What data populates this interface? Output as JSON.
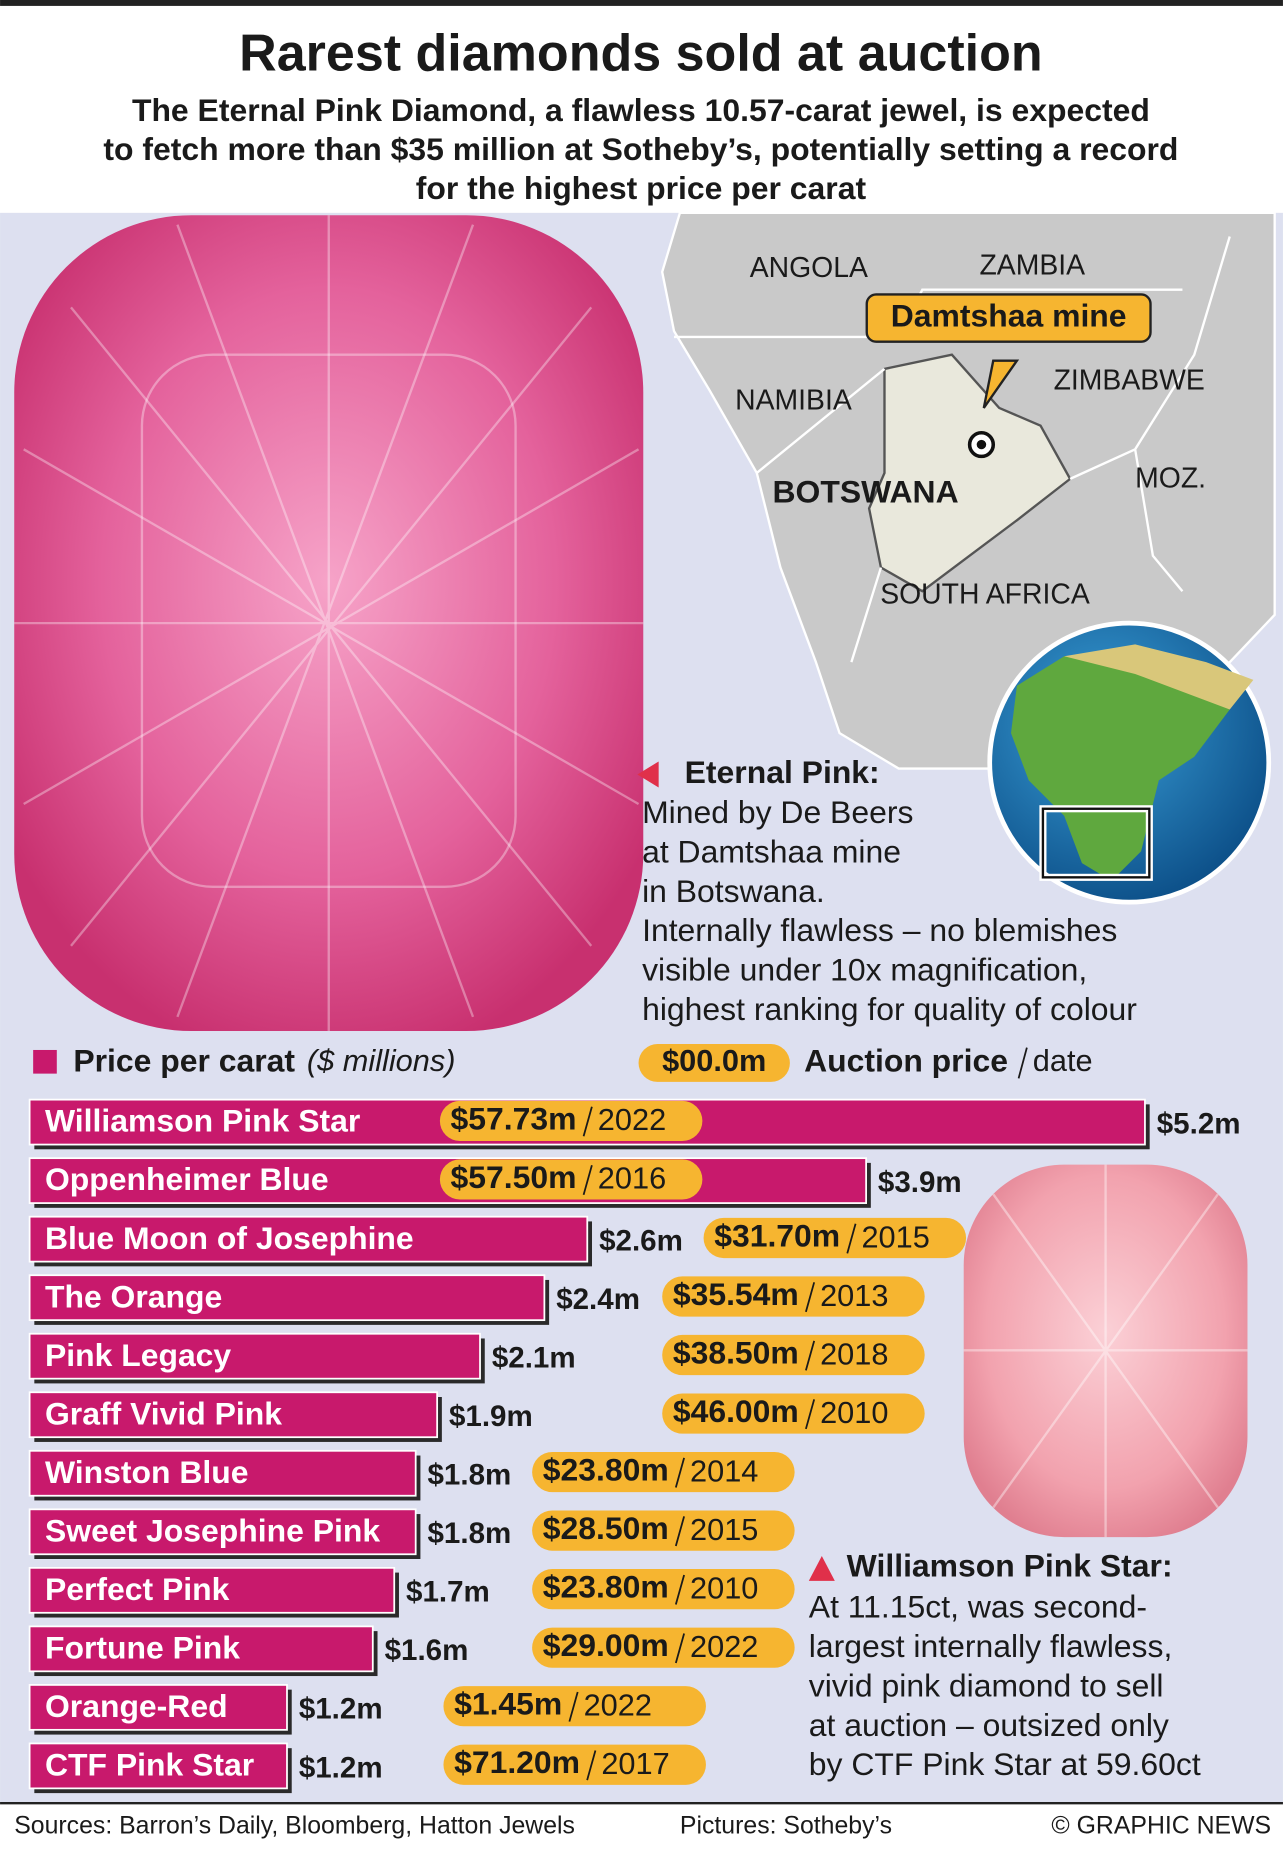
{
  "chart_data": {
    "type": "bar",
    "title": "Rarest diamonds sold at auction",
    "subtitle": [
      "The Eternal Pink Diamond, a flawless 10.57-carat jewel, is expected",
      "to fetch more than $35 million at Sotheby’s, potentially setting a record",
      "for the highest price per carat"
    ],
    "legend_label": "Price per carat",
    "legend_unit": "($ millions)",
    "legend_pill": "$00.0m",
    "legend_auction": "Auction price",
    "legend_date": "date",
    "color": "#c8196c",
    "pill_color": "#f6b530",
    "categories": [
      "Williamson Pink Star",
      "Oppenheimer Blue",
      "Blue Moon of Josephine",
      "The Orange",
      "Pink Legacy",
      "Graff Vivid Pink",
      "Winston Blue",
      "Sweet Josephine Pink",
      "Perfect Pink",
      "Fortune Pink",
      "Orange-Red",
      "CTF Pink Star"
    ],
    "values": [
      5.2,
      3.9,
      2.6,
      2.4,
      2.1,
      1.9,
      1.8,
      1.8,
      1.7,
      1.6,
      1.2,
      1.2
    ],
    "value_labels": [
      "$5.2m",
      "$3.9m",
      "$2.6m",
      "$2.4m",
      "$2.1m",
      "$1.9m",
      "$1.8m",
      "$1.8m",
      "$1.7m",
      "$1.6m",
      "$1.2m",
      "$1.2m"
    ],
    "auction_prices": [
      57.73,
      57.5,
      31.7,
      35.54,
      38.5,
      46.0,
      23.8,
      28.5,
      23.8,
      29.0,
      1.45,
      71.2
    ],
    "auction_price_labels": [
      "$57.73m",
      "$57.50m",
      "$31.70m",
      "$35.54m",
      "$38.50m",
      "$46.00m",
      "$23.80m",
      "$28.50m",
      "$23.80m",
      "$29.00m",
      "$1.45m",
      "$71.20m"
    ],
    "years": [
      2022,
      2016,
      2015,
      2013,
      2018,
      2010,
      2014,
      2015,
      2010,
      2022,
      2022,
      2017
    ]
  },
  "map": {
    "labels": [
      "ANGOLA",
      "ZAMBIA",
      "NAMIBIA",
      "ZIMBABWE",
      "MOZ.",
      "SOUTH AFRICA"
    ],
    "country": "BOTSWANA",
    "callout": "Damtshaa mine"
  },
  "notes": [
    {
      "title": "Eternal Pink:",
      "lines": [
        "Mined by De Beers",
        "at Damtshaa mine",
        "in Botswana.",
        "Internally flawless – no blemishes",
        "visible under 10x magnification,",
        "highest ranking for quality of colour"
      ]
    },
    {
      "title": "Williamson Pink Star:",
      "lines": [
        "At 11.15ct, was second-",
        "largest internally flawless,",
        "vivid pink diamond to sell",
        "at auction – outsized only",
        "by CTF Pink Star at 59.60ct"
      ]
    }
  ],
  "footer": {
    "sources": "Sources: Barron’s Daily, Bloomberg, Hatton Jewels",
    "pictures": "Pictures: Sotheby’s",
    "credit": "© GRAPHIC NEWS"
  }
}
